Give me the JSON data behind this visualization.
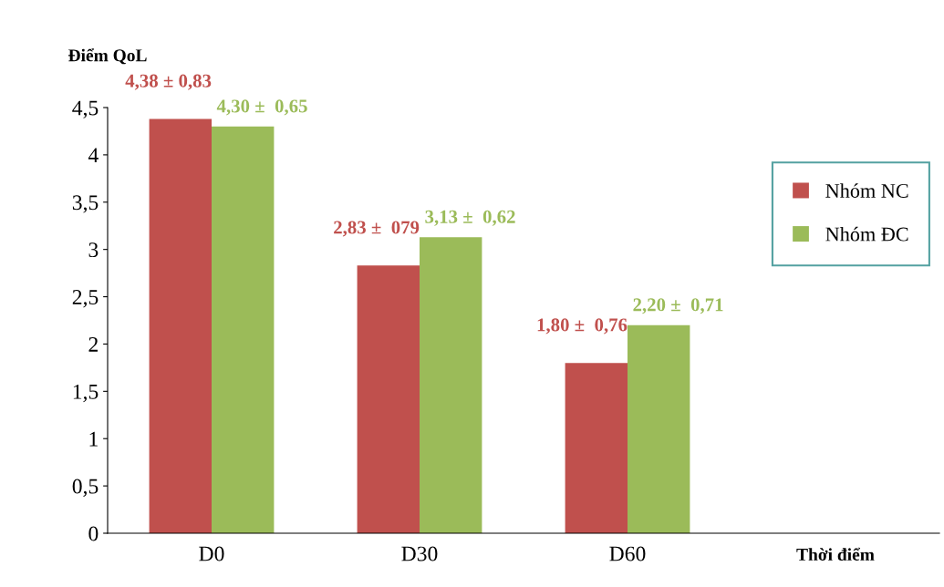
{
  "chart_data": {
    "type": "bar",
    "ylabel": "Điểm QoL",
    "xlabel": "Thời điểm",
    "categories": [
      "D0",
      "D30",
      "D60",
      null
    ],
    "series": [
      {
        "name": "Nhóm NC",
        "color": "#c0504d",
        "values": [
          4.38,
          2.83,
          1.8,
          null
        ],
        "value_labels": [
          "4,38 ± 0,83",
          "2,83 ±  079",
          "1,80 ±  0,76",
          null
        ]
      },
      {
        "name": "Nhóm ĐC",
        "color": "#9bbb59",
        "values": [
          4.3,
          3.13,
          2.2,
          null
        ],
        "value_labels": [
          "4,30 ±  0,65",
          "3,13 ±  0,62",
          "2,20 ±  0,71",
          null
        ]
      }
    ],
    "ylim": [
      0,
      4.5
    ],
    "yticks": [
      0,
      {
        "value": 0.5,
        "label": "0,5"
      },
      1,
      {
        "value": 1.5,
        "label": "1,5"
      },
      2,
      {
        "value": 2.5,
        "label": "2,5"
      },
      3,
      {
        "value": 3.5,
        "label": "3,5"
      },
      4,
      {
        "value": 4.5,
        "label": "4,5"
      }
    ],
    "legend": "right",
    "grid": false
  }
}
